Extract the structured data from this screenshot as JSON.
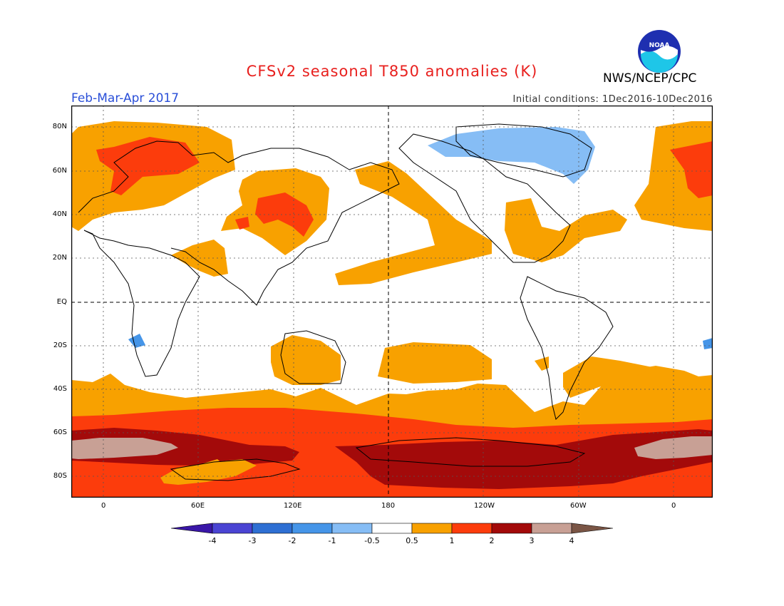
{
  "header": {
    "title": "CFSv2 seasonal T850 anomalies (K)",
    "season": "Feb-Mar-Apr 2017",
    "initial_conditions": "Initial conditions: 1Dec2016-10Dec2016",
    "agency": "NWS/NCEP/CPC",
    "logo_text": "NOAA"
  },
  "map": {
    "lat_labels": [
      "80N",
      "60N",
      "40N",
      "20N",
      "EQ",
      "20S",
      "40S",
      "60S",
      "80S"
    ],
    "lon_labels": [
      "0",
      "60E",
      "120E",
      "180",
      "120W",
      "60W",
      "0"
    ],
    "projection": "cylindrical equidistant",
    "grid": "dotted"
  },
  "legend": {
    "tick_labels": [
      "-4",
      "-3",
      "-2",
      "-1",
      "-0.5",
      "0.5",
      "1",
      "2",
      "3",
      "4"
    ],
    "colors": [
      "#3a17a8",
      "#4a44d3",
      "#2e6fd3",
      "#4595e8",
      "#86bdf5",
      "#ffffff",
      "#f8a100",
      "#fc3c0c",
      "#a30a0a",
      "#c8a095",
      "#7a5545"
    ]
  },
  "colors": {
    "title": "#e8201e",
    "season": "#2a4fd8",
    "band_05_1": "#f8a100",
    "band_1_2": "#fc3c0c",
    "band_2_3": "#a30a0a",
    "band_3_4": "#c8a095",
    "band_neg_05_1": "#86bdf5",
    "band_neg_1_2": "#4595e8"
  }
}
